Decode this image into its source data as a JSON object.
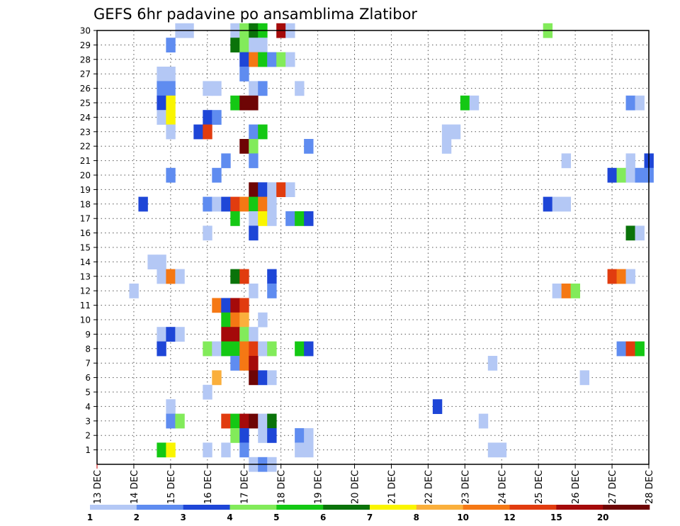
{
  "chart_data": {
    "type": "heatmap",
    "title": "GEFS 6hr padavine po ansamblima Zlatibor",
    "x_tick_labels": [
      "13 DEC",
      "14 DEC",
      "15 DEC",
      "16 DEC",
      "17 DEC",
      "18 DEC",
      "19 DEC",
      "20 DEC",
      "21 DEC",
      "22 DEC",
      "23 DEC",
      "24 DEC",
      "25 DEC",
      "26 DEC",
      "27 DEC",
      "28 DEC"
    ],
    "x_range_days": [
      13,
      28
    ],
    "y_tick_labels": [
      "1",
      "2",
      "3",
      "4",
      "5",
      "6",
      "7",
      "8",
      "9",
      "10",
      "11",
      "12",
      "13",
      "14",
      "15",
      "16",
      "17",
      "18",
      "19",
      "20",
      "21",
      "22",
      "23",
      "24",
      "25",
      "26",
      "27",
      "28",
      "29",
      "30"
    ],
    "y_range_members": [
      0,
      30
    ],
    "step_hours": 6,
    "grid": true,
    "colorbar": {
      "placement": "bottom",
      "labels": [
        "1",
        "2",
        "3",
        "4",
        "5",
        "6",
        "7",
        "8",
        "10",
        "12",
        "15",
        "20"
      ],
      "colors": [
        "#b4c8f5",
        "#5f8cf0",
        "#1e46d7",
        "#82eb5a",
        "#14c814",
        "#0a730a",
        "#faf500",
        "#faaf3c",
        "#f57814",
        "#e13c0f",
        "#a50a0a",
        "#6e0505"
      ]
    },
    "cells": [
      [
        30,
        15.25,
        1
      ],
      [
        30,
        15.5,
        1
      ],
      [
        30,
        16.75,
        1
      ],
      [
        30,
        17.0,
        4
      ],
      [
        30,
        17.25,
        6
      ],
      [
        30,
        17.5,
        5
      ],
      [
        30,
        18.0,
        11
      ],
      [
        30,
        18.25,
        1
      ],
      [
        30,
        25.25,
        4
      ],
      [
        29,
        15.0,
        2
      ],
      [
        29,
        16.75,
        6
      ],
      [
        29,
        17.0,
        4
      ],
      [
        29,
        17.25,
        1
      ],
      [
        29,
        17.5,
        1
      ],
      [
        28,
        17.0,
        3
      ],
      [
        28,
        17.25,
        9
      ],
      [
        28,
        17.5,
        5
      ],
      [
        28,
        17.75,
        2
      ],
      [
        28,
        18.0,
        4
      ],
      [
        28,
        18.25,
        1
      ],
      [
        27,
        14.75,
        1
      ],
      [
        27,
        15.0,
        1
      ],
      [
        27,
        17.0,
        2
      ],
      [
        26,
        14.75,
        2
      ],
      [
        26,
        15.0,
        2
      ],
      [
        26,
        16.0,
        1
      ],
      [
        26,
        16.25,
        1
      ],
      [
        26,
        17.25,
        1
      ],
      [
        26,
        17.5,
        2
      ],
      [
        26,
        18.5,
        1
      ],
      [
        25,
        14.75,
        3
      ],
      [
        25,
        15.0,
        7
      ],
      [
        25,
        16.75,
        5
      ],
      [
        25,
        17.0,
        12
      ],
      [
        25,
        17.25,
        12
      ],
      [
        25,
        23.0,
        5
      ],
      [
        25,
        23.25,
        1
      ],
      [
        25,
        27.5,
        2
      ],
      [
        25,
        27.75,
        1
      ],
      [
        24,
        14.75,
        1
      ],
      [
        24,
        15.0,
        7
      ],
      [
        24,
        16.0,
        3
      ],
      [
        24,
        16.25,
        2
      ],
      [
        23,
        15.0,
        1
      ],
      [
        23,
        15.75,
        3
      ],
      [
        23,
        16.0,
        10
      ],
      [
        23,
        17.25,
        2
      ],
      [
        23,
        17.5,
        5
      ],
      [
        23,
        22.5,
        1
      ],
      [
        23,
        22.75,
        1
      ],
      [
        22,
        17.0,
        12
      ],
      [
        22,
        17.25,
        4
      ],
      [
        22,
        18.75,
        2
      ],
      [
        22,
        22.5,
        1
      ],
      [
        21,
        16.5,
        2
      ],
      [
        21,
        17.25,
        2
      ],
      [
        21,
        25.75,
        1
      ],
      [
        21,
        27.5,
        1
      ],
      [
        21,
        28.0,
        3
      ],
      [
        20,
        15.0,
        2
      ],
      [
        20,
        16.25,
        2
      ],
      [
        20,
        27.0,
        3
      ],
      [
        20,
        27.25,
        4
      ],
      [
        20,
        27.5,
        1
      ],
      [
        20,
        27.75,
        2
      ],
      [
        20,
        28.0,
        2
      ],
      [
        19,
        17.25,
        12
      ],
      [
        19,
        17.5,
        3
      ],
      [
        19,
        17.75,
        1
      ],
      [
        19,
        18.0,
        10
      ],
      [
        19,
        18.25,
        1
      ],
      [
        18,
        14.25,
        3
      ],
      [
        18,
        16.0,
        2
      ],
      [
        18,
        16.25,
        1
      ],
      [
        18,
        16.5,
        3
      ],
      [
        18,
        16.75,
        10
      ],
      [
        18,
        17.0,
        9
      ],
      [
        18,
        17.25,
        5
      ],
      [
        18,
        17.5,
        9
      ],
      [
        18,
        17.75,
        1
      ],
      [
        18,
        25.25,
        3
      ],
      [
        18,
        25.5,
        1
      ],
      [
        18,
        25.75,
        1
      ],
      [
        17,
        16.75,
        5
      ],
      [
        17,
        17.25,
        1
      ],
      [
        17,
        17.5,
        7
      ],
      [
        17,
        17.75,
        1
      ],
      [
        17,
        18.25,
        2
      ],
      [
        17,
        18.5,
        5
      ],
      [
        17,
        18.75,
        3
      ],
      [
        16,
        16.0,
        1
      ],
      [
        16,
        17.25,
        3
      ],
      [
        16,
        27.5,
        6
      ],
      [
        16,
        27.75,
        1
      ],
      [
        14,
        14.5,
        1
      ],
      [
        14,
        14.75,
        1
      ],
      [
        13,
        14.75,
        1
      ],
      [
        13,
        15.0,
        9
      ],
      [
        13,
        15.25,
        1
      ],
      [
        13,
        16.75,
        6
      ],
      [
        13,
        17.0,
        10
      ],
      [
        13,
        17.75,
        3
      ],
      [
        13,
        27.0,
        10
      ],
      [
        13,
        27.25,
        9
      ],
      [
        13,
        27.5,
        1
      ],
      [
        12,
        14.0,
        1
      ],
      [
        12,
        17.25,
        1
      ],
      [
        12,
        17.75,
        2
      ],
      [
        12,
        25.5,
        1
      ],
      [
        12,
        25.75,
        9
      ],
      [
        12,
        26.0,
        4
      ],
      [
        11,
        16.25,
        9
      ],
      [
        11,
        16.5,
        3
      ],
      [
        11,
        16.75,
        11
      ],
      [
        11,
        17.0,
        10
      ],
      [
        10,
        16.5,
        5
      ],
      [
        10,
        16.75,
        9
      ],
      [
        10,
        17.0,
        8
      ],
      [
        10,
        17.5,
        1
      ],
      [
        9,
        14.75,
        1
      ],
      [
        9,
        15.0,
        3
      ],
      [
        9,
        15.25,
        1
      ],
      [
        9,
        16.5,
        11
      ],
      [
        9,
        16.75,
        11
      ],
      [
        9,
        17.0,
        4
      ],
      [
        9,
        17.25,
        1
      ],
      [
        8,
        14.75,
        3
      ],
      [
        8,
        16.0,
        4
      ],
      [
        8,
        16.25,
        1
      ],
      [
        8,
        16.5,
        5
      ],
      [
        8,
        16.75,
        5
      ],
      [
        8,
        17.0,
        9
      ],
      [
        8,
        17.25,
        10
      ],
      [
        8,
        17.5,
        1
      ],
      [
        8,
        17.75,
        4
      ],
      [
        8,
        18.5,
        5
      ],
      [
        8,
        18.75,
        3
      ],
      [
        8,
        27.25,
        2
      ],
      [
        8,
        27.5,
        10
      ],
      [
        8,
        27.75,
        5
      ],
      [
        7,
        16.75,
        2
      ],
      [
        7,
        17.0,
        9
      ],
      [
        7,
        17.25,
        11
      ],
      [
        7,
        23.75,
        1
      ],
      [
        6,
        16.25,
        8
      ],
      [
        6,
        17.25,
        12
      ],
      [
        6,
        17.5,
        3
      ],
      [
        6,
        17.75,
        1
      ],
      [
        6,
        26.25,
        1
      ],
      [
        5,
        16.0,
        1
      ],
      [
        4,
        15.0,
        1
      ],
      [
        4,
        22.25,
        3
      ],
      [
        3,
        15.0,
        2
      ],
      [
        3,
        15.25,
        4
      ],
      [
        3,
        16.5,
        10
      ],
      [
        3,
        16.75,
        5
      ],
      [
        3,
        17.0,
        11
      ],
      [
        3,
        17.25,
        12
      ],
      [
        3,
        17.5,
        1
      ],
      [
        3,
        17.75,
        6
      ],
      [
        3,
        23.5,
        1
      ],
      [
        2,
        16.75,
        4
      ],
      [
        2,
        17.0,
        3
      ],
      [
        2,
        17.5,
        1
      ],
      [
        2,
        17.75,
        3
      ],
      [
        2,
        18.5,
        2
      ],
      [
        2,
        18.75,
        1
      ],
      [
        1,
        14.75,
        5
      ],
      [
        1,
        15.0,
        7
      ],
      [
        1,
        16.0,
        1
      ],
      [
        1,
        16.5,
        1
      ],
      [
        1,
        17.0,
        2
      ],
      [
        1,
        18.5,
        1
      ],
      [
        1,
        18.75,
        1
      ],
      [
        1,
        23.75,
        1
      ],
      [
        1,
        24.0,
        1
      ],
      [
        0,
        17.25,
        1
      ],
      [
        0,
        17.5,
        2
      ],
      [
        0,
        17.75,
        1
      ]
    ]
  }
}
